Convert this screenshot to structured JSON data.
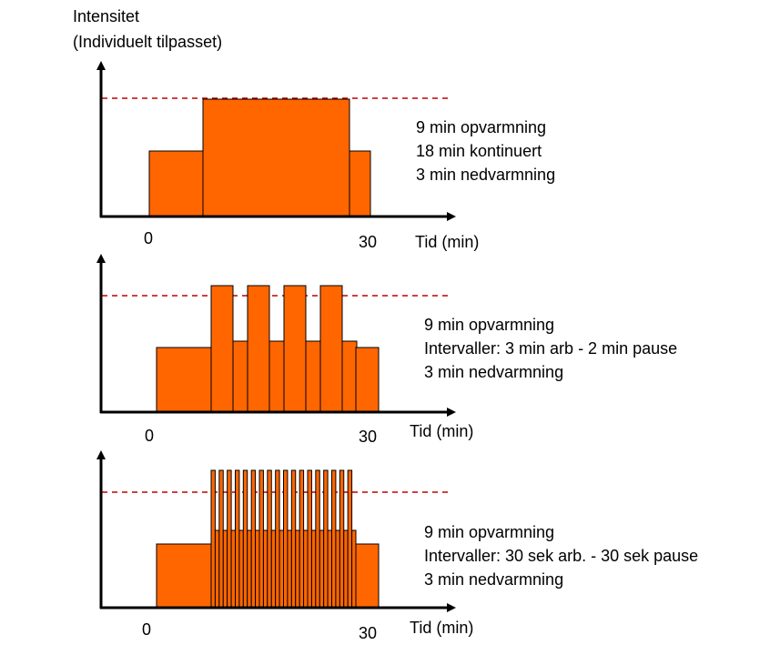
{
  "y_axis_label": [
    "Intensitet",
    "(Individuelt tilpasset)"
  ],
  "panels": [
    {
      "x_tick_start": "0",
      "x_tick_end": "30",
      "x_label": "Tid (min)",
      "description": [
        "9 min opvarmning",
        "18 min kontinuert",
        "3 min nedvarmning"
      ]
    },
    {
      "x_tick_start": "0",
      "x_tick_end": "30",
      "x_label": "Tid (min)",
      "description": [
        "9 min opvarmning",
        "Intervaller: 3 min arb - 2 min pause",
        "3 min nedvarmning"
      ]
    },
    {
      "x_tick_start": "0",
      "x_tick_end": "30",
      "x_label": "Tid (min)",
      "description": [
        "9 min opvarmning",
        "Intervaller: 30 sek arb. - 30 sek pause",
        "3 min nedvarmning"
      ]
    }
  ],
  "colors": {
    "bar_fill": "#ff6600",
    "reference_line": "#c00000",
    "axis": "#000000"
  }
}
